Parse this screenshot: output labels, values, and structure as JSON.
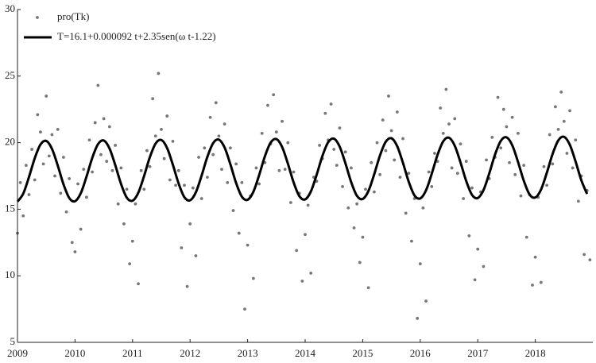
{
  "chart_data": {
    "type": "scatter",
    "xlim": [
      2009,
      2019
    ],
    "ylim": [
      5,
      30
    ],
    "xticks": [
      2009,
      2010,
      2011,
      2012,
      2013,
      2014,
      2015,
      2016,
      2017,
      2018
    ],
    "yticks": [
      5,
      10,
      15,
      20,
      25,
      30
    ],
    "legend": "upper-left",
    "series": [
      {
        "name": "pro(Tk)",
        "type": "scatter",
        "color": "#777777",
        "x": [
          2009,
          2009.05,
          2009.1,
          2009.15,
          2009.2,
          2009.25,
          2009.3,
          2009.35,
          2009.4,
          2009.45,
          2009.5,
          2009.55,
          2009.6,
          2009.65,
          2009.7,
          2009.75,
          2009.8,
          2009.85,
          2009.9,
          2009.95,
          2010,
          2010.05,
          2010.1,
          2010.15,
          2010.2,
          2010.25,
          2010.3,
          2010.35,
          2010.4,
          2010.45,
          2010.5,
          2010.55,
          2010.6,
          2010.65,
          2010.7,
          2010.75,
          2010.8,
          2010.85,
          2010.9,
          2010.95,
          2011,
          2011.05,
          2011.1,
          2011.15,
          2011.2,
          2011.25,
          2011.3,
          2011.35,
          2011.4,
          2011.45,
          2011.5,
          2011.55,
          2011.6,
          2011.65,
          2011.7,
          2011.75,
          2011.8,
          2011.85,
          2011.9,
          2011.95,
          2012,
          2012.05,
          2012.1,
          2012.15,
          2012.2,
          2012.25,
          2012.3,
          2012.35,
          2012.4,
          2012.45,
          2012.5,
          2012.55,
          2012.6,
          2012.65,
          2012.7,
          2012.75,
          2012.8,
          2012.85,
          2012.9,
          2012.95,
          2013,
          2013.05,
          2013.1,
          2013.15,
          2013.2,
          2013.25,
          2013.3,
          2013.35,
          2013.4,
          2013.45,
          2013.5,
          2013.55,
          2013.6,
          2013.65,
          2013.7,
          2013.75,
          2013.8,
          2013.85,
          2013.9,
          2013.95,
          2014,
          2014.05,
          2014.1,
          2014.15,
          2014.2,
          2014.25,
          2014.3,
          2014.35,
          2014.4,
          2014.45,
          2014.5,
          2014.55,
          2014.6,
          2014.65,
          2014.7,
          2014.75,
          2014.8,
          2014.85,
          2014.9,
          2014.95,
          2015,
          2015.05,
          2015.1,
          2015.15,
          2015.2,
          2015.25,
          2015.3,
          2015.35,
          2015.4,
          2015.45,
          2015.5,
          2015.55,
          2015.6,
          2015.65,
          2015.7,
          2015.75,
          2015.8,
          2015.85,
          2015.9,
          2015.95,
          2016,
          2016.05,
          2016.1,
          2016.15,
          2016.2,
          2016.25,
          2016.3,
          2016.35,
          2016.4,
          2016.45,
          2016.5,
          2016.55,
          2016.6,
          2016.65,
          2016.7,
          2016.75,
          2016.8,
          2016.85,
          2016.9,
          2016.95,
          2017,
          2017.05,
          2017.1,
          2017.15,
          2017.2,
          2017.25,
          2017.3,
          2017.35,
          2017.4,
          2017.45,
          2017.5,
          2017.55,
          2017.6,
          2017.65,
          2017.7,
          2017.75,
          2017.8,
          2017.85,
          2017.9,
          2017.95,
          2018,
          2018.05,
          2018.1,
          2018.15,
          2018.2,
          2018.25,
          2018.3,
          2018.35,
          2018.4,
          2018.45,
          2018.5,
          2018.55,
          2018.6,
          2018.65,
          2018.7,
          2018.75,
          2018.8,
          2018.85,
          2018.9,
          2018.95
        ],
        "values": [
          13.2,
          17.0,
          14.5,
          18.3,
          16.1,
          19.5,
          17.2,
          22.1,
          20.8,
          18.4,
          23.5,
          19.0,
          20.6,
          17.5,
          21.0,
          16.2,
          18.9,
          14.8,
          17.3,
          12.5,
          11.8,
          16.9,
          13.5,
          18.0,
          15.9,
          20.2,
          17.8,
          21.5,
          24.3,
          19.1,
          21.8,
          18.6,
          21.2,
          17.9,
          19.8,
          15.4,
          18.1,
          13.9,
          16.5,
          10.9,
          12.6,
          15.4,
          9.4,
          17.9,
          16.5,
          19.4,
          18.2,
          23.3,
          20.5,
          25.2,
          21.0,
          18.8,
          22.0,
          17.2,
          20.1,
          16.8,
          17.9,
          12.1,
          16.8,
          9.2,
          13.9,
          16.6,
          11.5,
          18.9,
          15.8,
          19.6,
          17.4,
          21.9,
          19.1,
          23.0,
          20.5,
          18.0,
          21.4,
          17.0,
          19.6,
          14.9,
          18.4,
          13.2,
          17.0,
          7.5,
          12.3,
          16.0,
          9.8,
          18.1,
          16.9,
          20.7,
          18.5,
          22.8,
          19.9,
          23.6,
          20.8,
          17.9,
          21.6,
          18.0,
          20.0,
          15.5,
          17.8,
          11.9,
          16.2,
          9.6,
          13.1,
          15.3,
          10.2,
          17.4,
          17.1,
          19.8,
          18.8,
          22.2,
          20.2,
          22.9,
          19.5,
          18.3,
          21.1,
          16.7,
          19.3,
          15.1,
          18.1,
          13.6,
          15.4,
          11.0,
          12.9,
          16.5,
          9.1,
          18.5,
          16.3,
          20.0,
          17.6,
          21.7,
          19.4,
          23.5,
          20.9,
          18.7,
          22.3,
          17.4,
          20.3,
          14.7,
          17.7,
          12.6,
          15.8,
          6.8,
          10.9,
          15.1,
          8.1,
          17.8,
          16.7,
          19.2,
          18.6,
          22.6,
          20.7,
          24.0,
          21.4,
          18.1,
          21.8,
          17.7,
          19.9,
          15.8,
          18.6,
          13.0,
          16.6,
          9.7,
          12.0,
          16.3,
          10.7,
          18.7,
          17.3,
          20.4,
          18.9,
          23.4,
          19.6,
          22.5,
          21.2,
          18.5,
          21.9,
          17.6,
          20.7,
          16.0,
          18.3,
          12.9,
          16.1,
          9.3,
          11.4,
          15.9,
          9.5,
          18.2,
          16.8,
          20.6,
          18.4,
          22.7,
          21.0,
          23.8,
          21.6,
          19.2,
          22.4,
          18.1,
          20.2,
          15.6,
          17.5,
          11.6,
          16.4,
          11.2
        ]
      },
      {
        "name": "T=16.1+0.000092 t+2.35sen(ω t-1.22)",
        "type": "line",
        "color": "#000000",
        "x": [
          2009,
          2009.1,
          2009.2,
          2009.3,
          2009.4,
          2009.5,
          2009.6,
          2009.7,
          2009.8,
          2009.9,
          2010,
          2010.1,
          2010.2,
          2010.3,
          2010.4,
          2010.5,
          2010.6,
          2010.7,
          2010.8,
          2010.9,
          2011,
          2011.1,
          2011.2,
          2011.3,
          2011.4,
          2011.5,
          2011.6,
          2011.7,
          2011.8,
          2011.9,
          2012,
          2012.1,
          2012.2,
          2012.3,
          2012.4,
          2012.5,
          2012.6,
          2012.7,
          2012.8,
          2012.9,
          2013,
          2013.1,
          2013.2,
          2013.3,
          2013.4,
          2013.5,
          2013.6,
          2013.7,
          2013.8,
          2013.9,
          2014,
          2014.1,
          2014.2,
          2014.3,
          2014.4,
          2014.5,
          2014.6,
          2014.7,
          2014.8,
          2014.9,
          2015,
          2015.1,
          2015.2,
          2015.3,
          2015.4,
          2015.5,
          2015.6,
          2015.7,
          2015.8,
          2015.9,
          2016,
          2016.1,
          2016.2,
          2016.3,
          2016.4,
          2016.5,
          2016.6,
          2016.7,
          2016.8,
          2016.9,
          2017,
          2017.1,
          2017.2,
          2017.3,
          2017.4,
          2017.5,
          2017.6,
          2017.7,
          2017.8,
          2017.9,
          2018,
          2018.1,
          2018.2,
          2018.3,
          2018.4,
          2018.5,
          2018.6,
          2018.7,
          2018.8,
          2018.9
        ],
        "values": [
          15.57,
          16.17,
          17.42,
          18.83,
          19.86,
          20.13,
          19.53,
          18.28,
          16.87,
          15.84,
          15.6,
          16.2,
          17.45,
          18.86,
          19.89,
          20.16,
          19.56,
          18.31,
          16.9,
          15.87,
          15.64,
          16.24,
          17.49,
          18.9,
          19.93,
          20.2,
          19.6,
          18.35,
          16.94,
          15.91,
          15.67,
          16.27,
          17.52,
          18.93,
          19.96,
          20.23,
          19.63,
          18.38,
          16.97,
          15.94,
          15.71,
          16.31,
          17.56,
          18.97,
          20,
          20.27,
          19.67,
          18.42,
          17.01,
          15.98,
          15.74,
          16.34,
          17.59,
          19,
          20.03,
          20.3,
          19.7,
          18.45,
          17.04,
          16.01,
          15.77,
          16.37,
          17.62,
          19.03,
          20.06,
          20.33,
          19.73,
          18.48,
          17.07,
          16.04,
          15.81,
          16.41,
          17.66,
          19.07,
          20.1,
          20.37,
          19.77,
          18.52,
          17.11,
          16.08,
          15.84,
          16.44,
          17.69,
          19.1,
          20.13,
          20.4,
          19.8,
          18.55,
          17.14,
          16.11,
          15.88,
          16.48,
          17.73,
          19.14,
          20.17,
          20.44,
          19.84,
          18.59,
          17.18,
          16.15
        ]
      }
    ]
  }
}
